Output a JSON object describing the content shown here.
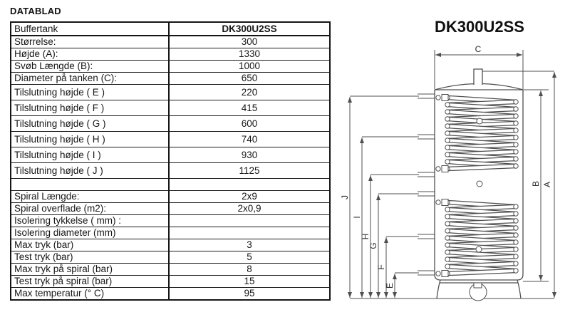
{
  "page": {
    "title": "DATABLAD"
  },
  "table": {
    "header": {
      "label": "Buffertank",
      "value": "DK300U2SS"
    },
    "rows": [
      {
        "label": "Størrelse:",
        "value": "300"
      },
      {
        "label": "Højde (A):",
        "value": "1330"
      },
      {
        "label": "Svøb Længde (B):",
        "value": "1000"
      },
      {
        "label": "Diameter på tanken (C):",
        "value": "650"
      },
      {
        "label": "Tilslutning højde ( E )",
        "value": "220"
      },
      {
        "label": "Tilslutning højde ( F )",
        "value": "415"
      },
      {
        "label": "Tilslutning højde ( G )",
        "value": "600"
      },
      {
        "label": "Tilslutning højde ( H )",
        "value": "740"
      },
      {
        "label": "Tilslutning højde ( I )",
        "value": "930"
      },
      {
        "label": "Tilslutning højde ( J )",
        "value": "1125"
      },
      {
        "label": "",
        "value": ""
      },
      {
        "label": "Spiral Længde:",
        "value": "2x9"
      },
      {
        "label": "Spiral overflade (m2):",
        "value": "2x0,9"
      },
      {
        "label": "Isolering tykkelse ( mm) :",
        "value": ""
      },
      {
        "label": "Isolering diameter (mm)",
        "value": ""
      },
      {
        "label": "Max tryk (bar)",
        "value": "3"
      },
      {
        "label": "Test tryk (bar)",
        "value": "5"
      },
      {
        "label": "Max tryk på spiral (bar)",
        "value": "8"
      },
      {
        "label": "Test tryk på spiral (bar)",
        "value": "15"
      },
      {
        "label": "Max temperatur (° C)",
        "value": "95"
      }
    ]
  },
  "diagram": {
    "title": "DK300U2SS",
    "dim_labels": {
      "A": "A",
      "B": "B",
      "C": "C",
      "E": "E",
      "F": "F",
      "G": "G",
      "H": "H",
      "I": "I",
      "J": "J"
    }
  },
  "colors": {
    "ink": "#111111",
    "drawing_line": "#4f4f4f"
  }
}
